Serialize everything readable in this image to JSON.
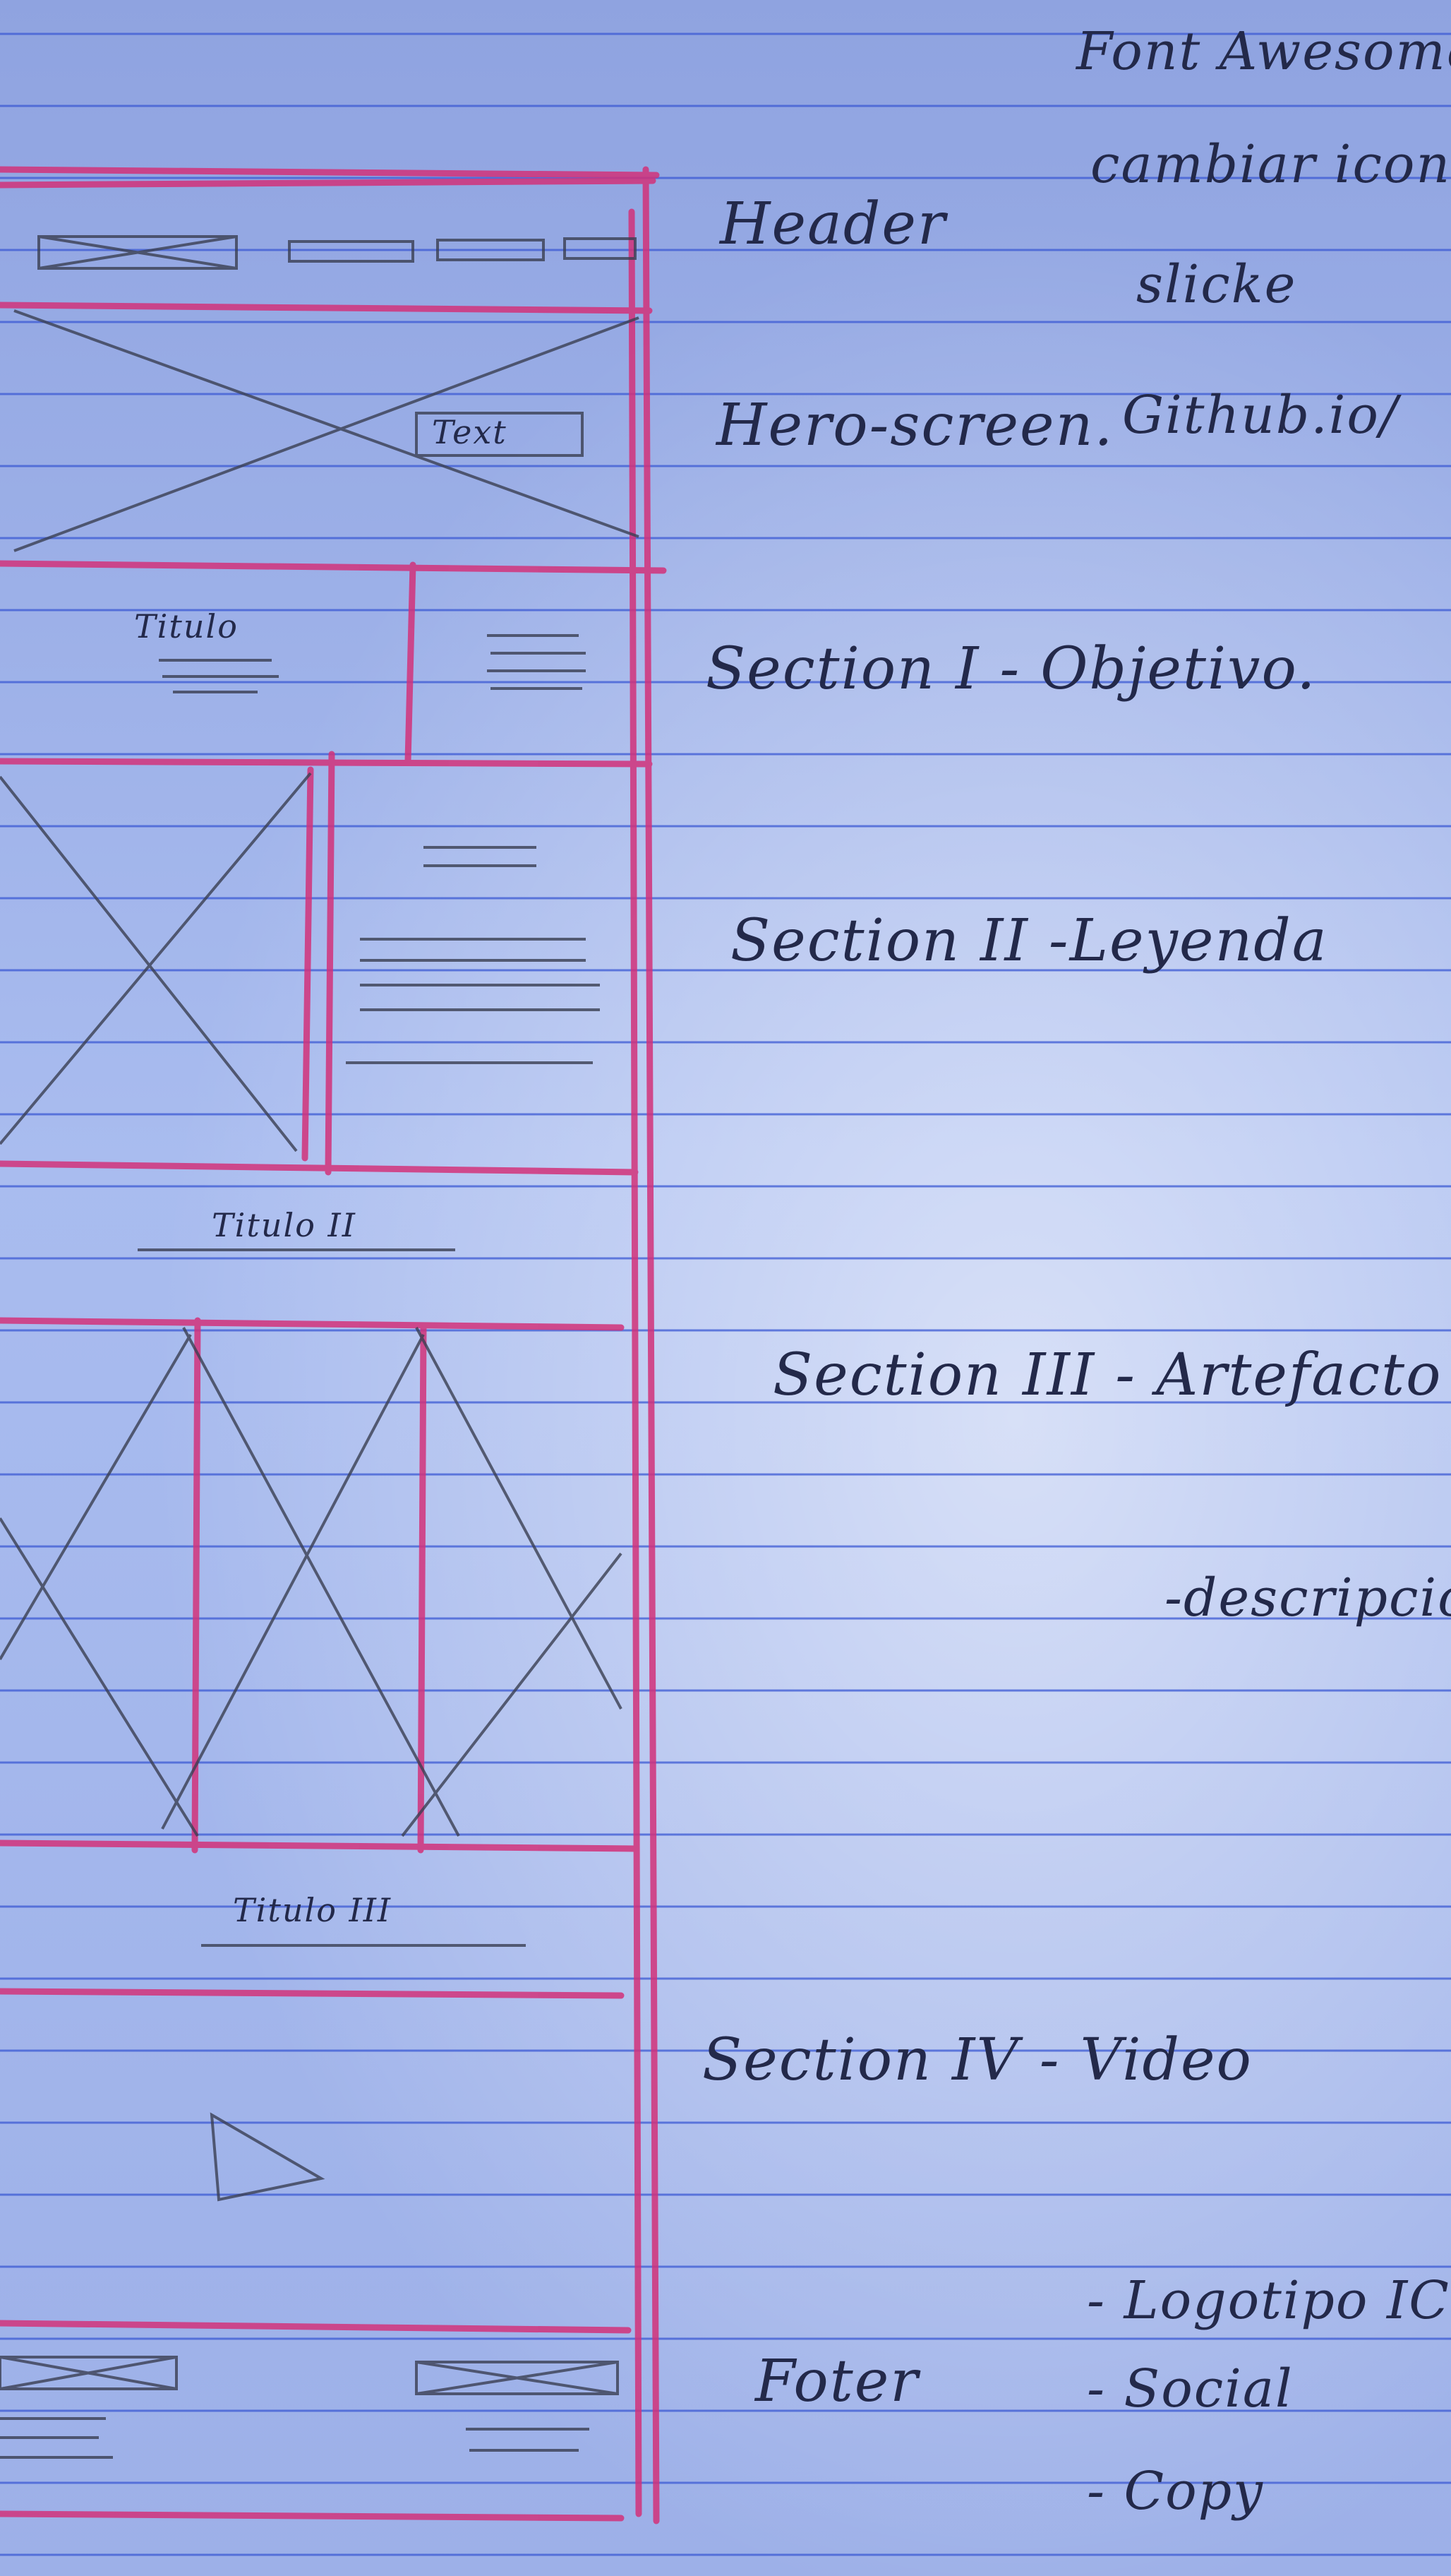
{
  "page": {
    "colors": {
      "paper": "#a9bcef",
      "rule_line": "#3c5ad4",
      "wireframe_red": "#d2327a",
      "pencil": "#3a3f52",
      "ink": "#23294a"
    }
  },
  "side_notes": [
    "Font Awesome",
    "cambiar icono-",
    "slicke",
    "Github.io/"
  ],
  "sections": {
    "header": "Header",
    "hero": "Hero-screen.",
    "section1": "Section I - Objetivo.",
    "section2": "Section II -Leyenda",
    "section3": "Section III - Artefacto",
    "section3_note": "-descripció",
    "section4": "Section IV - Video",
    "footer": "Foter"
  },
  "footer_notes": [
    "- Logotipo ICO",
    "- Social",
    "- Copy"
  ],
  "wireframe_labels": {
    "hero_button": "Text",
    "section1_title": "Titulo",
    "section2_title": "Titulo II",
    "section3_title": "Titulo III"
  }
}
